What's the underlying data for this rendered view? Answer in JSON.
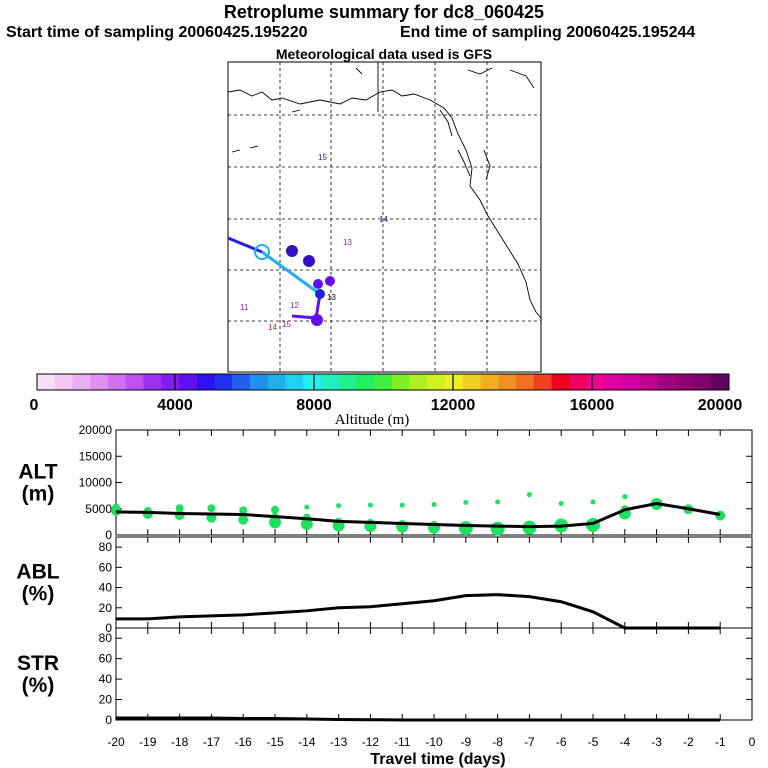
{
  "title": "Retroplume summary for dc8_060425",
  "start_label": "Start time of sampling 20060425.195220",
  "end_label": "End time of sampling 20060425.195244",
  "met_label": "Meteorological data used is GFS",
  "colorbar": {
    "label": "Altitude (m)",
    "ticks": [
      "0",
      "4000",
      "8000",
      "12000",
      "16000",
      "20000"
    ],
    "colors": [
      "#f8e0f8",
      "#f0c8f0",
      "#e8b0f0",
      "#e090f0",
      "#d070f0",
      "#c050f0",
      "#a030f0",
      "#8020f0",
      "#6010f0",
      "#3010f0",
      "#2030f0",
      "#2060f0",
      "#2090f0",
      "#20b0f0",
      "#20d0f0",
      "#20f0f0",
      "#20f0c0",
      "#20f090",
      "#20f060",
      "#40f040",
      "#80f020",
      "#b0f020",
      "#d0f020",
      "#f0f020",
      "#f0d020",
      "#f0b020",
      "#f09020",
      "#f07020",
      "#f04020",
      "#f00020",
      "#f00060",
      "#f00090",
      "#e000a0",
      "#d000a0",
      "#c00090",
      "#a00080",
      "#900070",
      "#800070",
      "#600060"
    ]
  },
  "map": {
    "labels": [
      "15",
      "14",
      "13",
      "13",
      "12",
      "11",
      "14",
      "15"
    ],
    "marker_colors": {
      "track_dark": "#2020e0",
      "track_light": "#20b0f0",
      "purple": "#6010f0"
    }
  },
  "chart_data": [
    {
      "type": "line",
      "panel": "ALT",
      "ylabel": "ALT\n(m)",
      "ylabel_lines": [
        "ALT",
        "(m)"
      ],
      "ylim": [
        0,
        20000
      ],
      "yticks": [
        "0",
        "5000",
        "10000",
        "15000",
        "20000"
      ],
      "x": [
        -20,
        -19,
        -18,
        -17,
        -16,
        -15,
        -14,
        -13,
        -12,
        -11,
        -10,
        -9,
        -8,
        -7,
        -6,
        -5,
        -4,
        -3,
        -2,
        -1
      ],
      "values": [
        4400,
        4300,
        4100,
        4000,
        3900,
        3500,
        3100,
        2600,
        2400,
        2200,
        2000,
        1800,
        1700,
        1600,
        1700,
        2200,
        4800,
        6000,
        5000,
        3900
      ],
      "points_color": "#20e060",
      "points_a": [
        5200,
        4600,
        5100,
        5100,
        4700,
        4800,
        3300,
        2500,
        2300,
        2100,
        1900,
        1600,
        1500,
        1700,
        2200,
        2400,
        4900,
        6100,
        4900,
        3800
      ],
      "points_b": [
        4600,
        4000,
        3800,
        3300,
        2900,
        2400,
        2100,
        1800,
        1700,
        1600,
        1400,
        1300,
        1200,
        1400,
        1800,
        1900,
        4100,
        5900,
        4900,
        3700
      ],
      "points_c": [
        null,
        null,
        null,
        null,
        null,
        4000,
        5300,
        5600,
        5700,
        5700,
        5800,
        6200,
        6300,
        7700,
        6000,
        6300,
        7300,
        null,
        null,
        null
      ]
    },
    {
      "type": "line",
      "panel": "ABL",
      "ylabel": "ABL\n(%)",
      "ylabel_lines": [
        "ABL",
        "(%)"
      ],
      "ylim": [
        0,
        90
      ],
      "yticks": [
        "0",
        "20",
        "40",
        "60",
        "80"
      ],
      "x": [
        -20,
        -19,
        -18,
        -17,
        -16,
        -15,
        -14,
        -13,
        -12,
        -11,
        -10,
        -9,
        -8,
        -7,
        -6,
        -5,
        -4,
        -3,
        -2,
        -1
      ],
      "values": [
        9,
        9,
        11,
        12,
        13,
        15,
        17,
        20,
        21,
        24,
        27,
        32,
        33,
        31,
        26,
        16,
        0,
        0,
        0,
        0
      ]
    },
    {
      "type": "line",
      "panel": "STR",
      "ylabel": "STR\n(%)",
      "ylabel_lines": [
        "STR",
        "(%)"
      ],
      "ylim": [
        0,
        90
      ],
      "yticks": [
        "0",
        "20",
        "40",
        "60",
        "80"
      ],
      "x": [
        -20,
        -19,
        -18,
        -17,
        -16,
        -15,
        -14,
        -13,
        -12,
        -11,
        -10,
        -9,
        -8,
        -7,
        -6,
        -5,
        -4,
        -3,
        -2,
        -1
      ],
      "values": [
        2,
        2,
        2,
        2,
        1.5,
        1.5,
        1,
        0.5,
        0.3,
        0,
        0,
        0,
        0,
        0,
        0,
        0,
        0,
        0,
        0,
        0
      ],
      "xlabel": "Travel time (days)",
      "xticks": [
        "-20",
        "-19",
        "-18",
        "-17",
        "-16",
        "-15",
        "-14",
        "-13",
        "-12",
        "-11",
        "-10",
        "-9",
        "-8",
        "-7",
        "-6",
        "-5",
        "-4",
        "-3",
        "-2",
        "-1",
        "0"
      ]
    }
  ]
}
